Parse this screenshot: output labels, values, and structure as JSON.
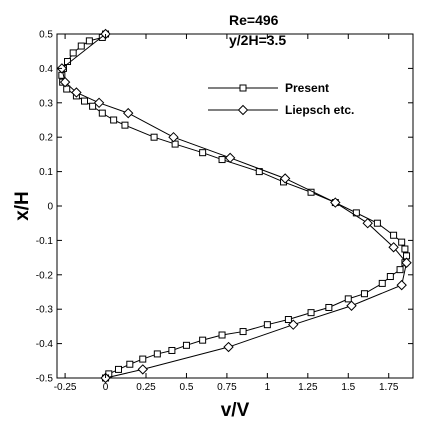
{
  "chart_data": {
    "type": "line",
    "title": "",
    "xlabel": "v/V",
    "ylabel": "x/H",
    "xlim": [
      -0.3,
      1.9
    ],
    "ylim": [
      -0.5,
      0.5
    ],
    "grid": false,
    "legend_position": "top-right",
    "annotations": [
      "Re=496",
      "y/2H=3.5"
    ],
    "x_ticks": [
      -0.25,
      0,
      0.25,
      0.5,
      0.75,
      1,
      1.25,
      1.5,
      1.75
    ],
    "x_tick_labels": [
      "-0.25",
      "0",
      "0.25",
      "0.5",
      "0.75",
      "1",
      "1.25",
      "1.5",
      "1.75"
    ],
    "y_ticks": [
      -0.5,
      -0.4,
      -0.3,
      -0.2,
      -0.1,
      0,
      0.1,
      0.2,
      0.3,
      0.4,
      0.5
    ],
    "y_tick_labels": [
      "-0.5",
      "-0.4",
      "-0.3",
      "-0.2",
      "-0.1",
      "0",
      "0.1",
      "0.2",
      "0.3",
      "0.4",
      "0.5"
    ],
    "series": [
      {
        "name": "Present",
        "marker": "square",
        "color": "#000000",
        "points": [
          [
            0.0,
            0.5
          ],
          [
            -0.02,
            0.49
          ],
          [
            -0.1,
            0.48
          ],
          [
            -0.15,
            0.465
          ],
          [
            -0.2,
            0.445
          ],
          [
            -0.235,
            0.42
          ],
          [
            -0.26,
            0.4
          ],
          [
            -0.27,
            0.38
          ],
          [
            -0.265,
            0.36
          ],
          [
            -0.24,
            0.34
          ],
          [
            -0.18,
            0.32
          ],
          [
            -0.13,
            0.305
          ],
          [
            -0.08,
            0.29
          ],
          [
            -0.02,
            0.27
          ],
          [
            0.05,
            0.25
          ],
          [
            0.12,
            0.235
          ],
          [
            0.3,
            0.2
          ],
          [
            0.43,
            0.18
          ],
          [
            0.6,
            0.155
          ],
          [
            0.72,
            0.135
          ],
          [
            0.95,
            0.1
          ],
          [
            1.1,
            0.07
          ],
          [
            1.27,
            0.04
          ],
          [
            1.42,
            0.01
          ],
          [
            1.55,
            -0.02
          ],
          [
            1.68,
            -0.05
          ],
          [
            1.78,
            -0.085
          ],
          [
            1.83,
            -0.105
          ],
          [
            1.85,
            -0.125
          ],
          [
            1.86,
            -0.145
          ],
          [
            1.85,
            -0.165
          ],
          [
            1.82,
            -0.185
          ],
          [
            1.76,
            -0.205
          ],
          [
            1.71,
            -0.225
          ],
          [
            1.6,
            -0.255
          ],
          [
            1.5,
            -0.27
          ],
          [
            1.38,
            -0.295
          ],
          [
            1.27,
            -0.31
          ],
          [
            1.13,
            -0.33
          ],
          [
            1.0,
            -0.345
          ],
          [
            0.85,
            -0.365
          ],
          [
            0.72,
            -0.375
          ],
          [
            0.6,
            -0.39
          ],
          [
            0.5,
            -0.405
          ],
          [
            0.41,
            -0.42
          ],
          [
            0.32,
            -0.43
          ],
          [
            0.23,
            -0.445
          ],
          [
            0.15,
            -0.46
          ],
          [
            0.08,
            -0.475
          ],
          [
            0.02,
            -0.488
          ],
          [
            0.0,
            -0.5
          ]
        ]
      },
      {
        "name": "Liepsch etc.",
        "marker": "diamond",
        "color": "#000000",
        "points": [
          [
            0.0,
            0.5
          ],
          [
            -0.27,
            0.4
          ],
          [
            -0.25,
            0.36
          ],
          [
            -0.18,
            0.33
          ],
          [
            -0.04,
            0.3
          ],
          [
            0.14,
            0.27
          ],
          [
            0.42,
            0.2
          ],
          [
            0.77,
            0.14
          ],
          [
            1.11,
            0.08
          ],
          [
            1.42,
            0.01
          ],
          [
            1.62,
            -0.05
          ],
          [
            1.78,
            -0.12
          ],
          [
            1.86,
            -0.165
          ],
          [
            1.83,
            -0.23
          ],
          [
            1.52,
            -0.29
          ],
          [
            1.16,
            -0.345
          ],
          [
            0.76,
            -0.41
          ],
          [
            0.23,
            -0.475
          ],
          [
            0.0,
            -0.5
          ]
        ]
      }
    ]
  }
}
